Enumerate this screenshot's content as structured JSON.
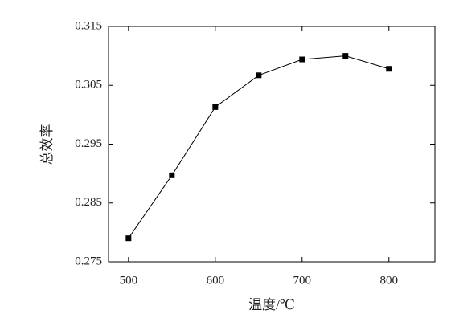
{
  "chart_data": {
    "type": "line",
    "x_label": "温度/℃",
    "y_label": "总效率",
    "x": [
      500,
      550,
      600,
      650,
      700,
      750,
      800
    ],
    "series": [
      {
        "color": "#000000",
        "values": [
          0.279,
          0.2897,
          0.3013,
          0.3067,
          0.3094,
          0.31,
          0.3078
        ]
      }
    ],
    "xlim": [
      477,
      853
    ],
    "ylim": [
      0.275,
      0.315
    ],
    "xticks": [
      500,
      600,
      700,
      800
    ],
    "yticks": [
      0.275,
      0.285,
      0.295,
      0.305,
      0.315
    ]
  }
}
